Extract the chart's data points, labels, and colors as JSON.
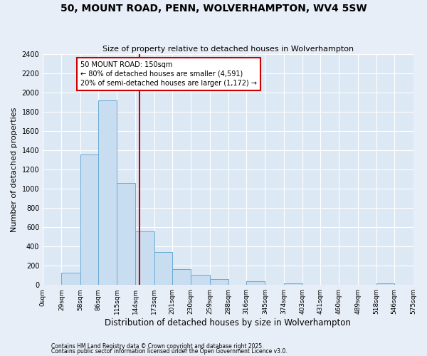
{
  "title": "50, MOUNT ROAD, PENN, WOLVERHAMPTON, WV4 5SW",
  "subtitle": "Size of property relative to detached houses in Wolverhampton",
  "xlabel": "Distribution of detached houses by size in Wolverhampton",
  "ylabel": "Number of detached properties",
  "bin_edges": [
    0,
    29,
    58,
    86,
    115,
    144,
    173,
    201,
    230,
    259,
    288,
    316,
    345,
    374,
    403,
    431,
    460,
    489,
    518,
    546,
    575
  ],
  "bin_labels": [
    "0sqm",
    "29sqm",
    "58sqm",
    "86sqm",
    "115sqm",
    "144sqm",
    "173sqm",
    "201sqm",
    "230sqm",
    "259sqm",
    "288sqm",
    "316sqm",
    "345sqm",
    "374sqm",
    "403sqm",
    "431sqm",
    "460sqm",
    "489sqm",
    "518sqm",
    "546sqm",
    "575sqm"
  ],
  "bar_heights": [
    0,
    130,
    1360,
    1920,
    1060,
    560,
    340,
    165,
    105,
    60,
    0,
    35,
    0,
    20,
    0,
    0,
    0,
    0,
    20,
    0
  ],
  "bar_color": "#c9ddf0",
  "bar_edge_color": "#6aaad4",
  "property_size": 150,
  "vline_color": "#cc0000",
  "annotation_line1": "50 MOUNT ROAD: 150sqm",
  "annotation_line2": "← 80% of detached houses are smaller (4,591)",
  "annotation_line3": "20% of semi-detached houses are larger (1,172) →",
  "annotation_box_color": "#ffffff",
  "annotation_box_edge": "#cc0000",
  "ylim": [
    0,
    2400
  ],
  "yticks": [
    0,
    200,
    400,
    600,
    800,
    1000,
    1200,
    1400,
    1600,
    1800,
    2000,
    2200,
    2400
  ],
  "footnote1": "Contains HM Land Registry data © Crown copyright and database right 2025.",
  "footnote2": "Contains public sector information licensed under the Open Government Licence v3.0.",
  "plot_bg_color": "#dde8f5",
  "fig_bg_color": "#e8eef7",
  "grid_color": "#ffffff",
  "title_fontsize": 10,
  "subtitle_fontsize": 8
}
